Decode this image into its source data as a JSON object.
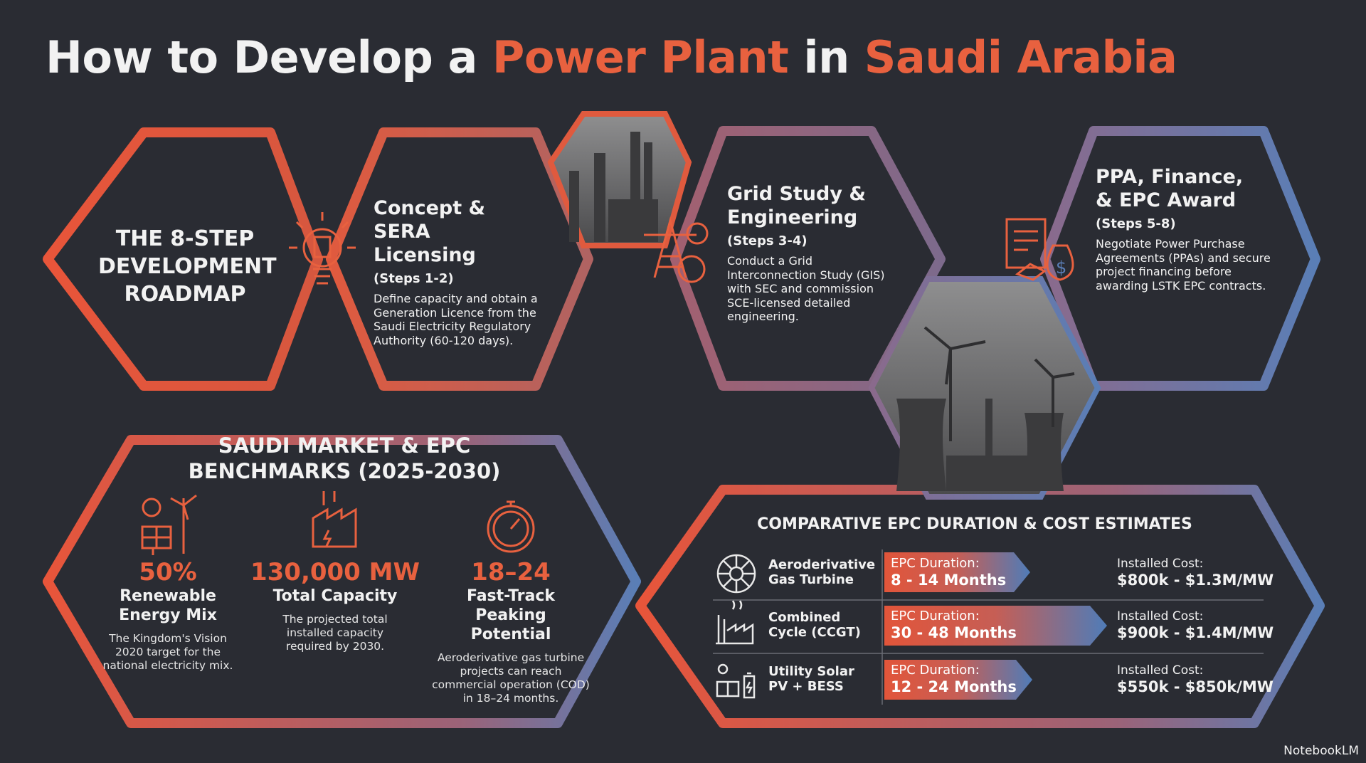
{
  "title": {
    "parts": [
      "How to Develop a ",
      "Power Plant",
      " in ",
      "Saudi Arabia"
    ]
  },
  "roadmap": {
    "title": "THE 8-STEP DEVELOPMENT ROADMAP",
    "steps": [
      {
        "title": "Concept & SERA Licensing",
        "steps": "(Steps 1-2)",
        "text": "Define capacity and obtain a Generation Licence from the Saudi Electricity Regulatory Authority (60-120 days)."
      },
      {
        "title": "Grid Study & Engineering",
        "steps": "(Steps 3-4)",
        "text": "Conduct a Grid Interconnection Study (GIS) with SEC and commission SCE-licensed detailed engineering."
      },
      {
        "title": "PPA, Finance, & EPC Award",
        "steps": "(Steps 5-8)",
        "text": "Negotiate Power Purchase Agreements (PPAs) and secure project financing before awarding LSTK EPC contracts."
      }
    ]
  },
  "benchmarks": {
    "title": "SAUDI MARKET & EPC BENCHMARKS (2025-2030)",
    "items": [
      {
        "value": "50%",
        "label": "Renewable Energy Mix",
        "text": "The Kingdom's Vision 2020 target for the national electricity mix."
      },
      {
        "value": "130,000 MW",
        "label": "Total Capacity",
        "text": "The projected total installed capacity required by 2030."
      },
      {
        "value": "18–24",
        "label": "Fast-Track Peaking Potential",
        "text": "Aeroderivative gas turbine projects can reach commercial operation (COD) in 18–24 months."
      }
    ]
  },
  "comparison": {
    "title": "COMPARATIVE EPC DURATION & COST ESTIMATES",
    "rows": [
      {
        "name": "Aeroderivative Gas Turbine",
        "duration_label": "EPC Duration:",
        "duration": "8 - 14 Months",
        "cost_label": "Installed Cost:",
        "cost": "$800k - $1.3M/MW"
      },
      {
        "name": "Combined Cycle (CCGT)",
        "duration_label": "EPC Duration:",
        "duration": "30 - 48 Months",
        "cost_label": "Installed Cost:",
        "cost": "$900k - $1.4M/MW"
      },
      {
        "name": "Utility Solar PV + BESS",
        "duration_label": "EPC Duration:",
        "duration": "12 - 24 Months",
        "cost_label": "Installed Cost:",
        "cost": "$550k - $850k/MW"
      }
    ]
  },
  "footer": "NotebookLM"
}
